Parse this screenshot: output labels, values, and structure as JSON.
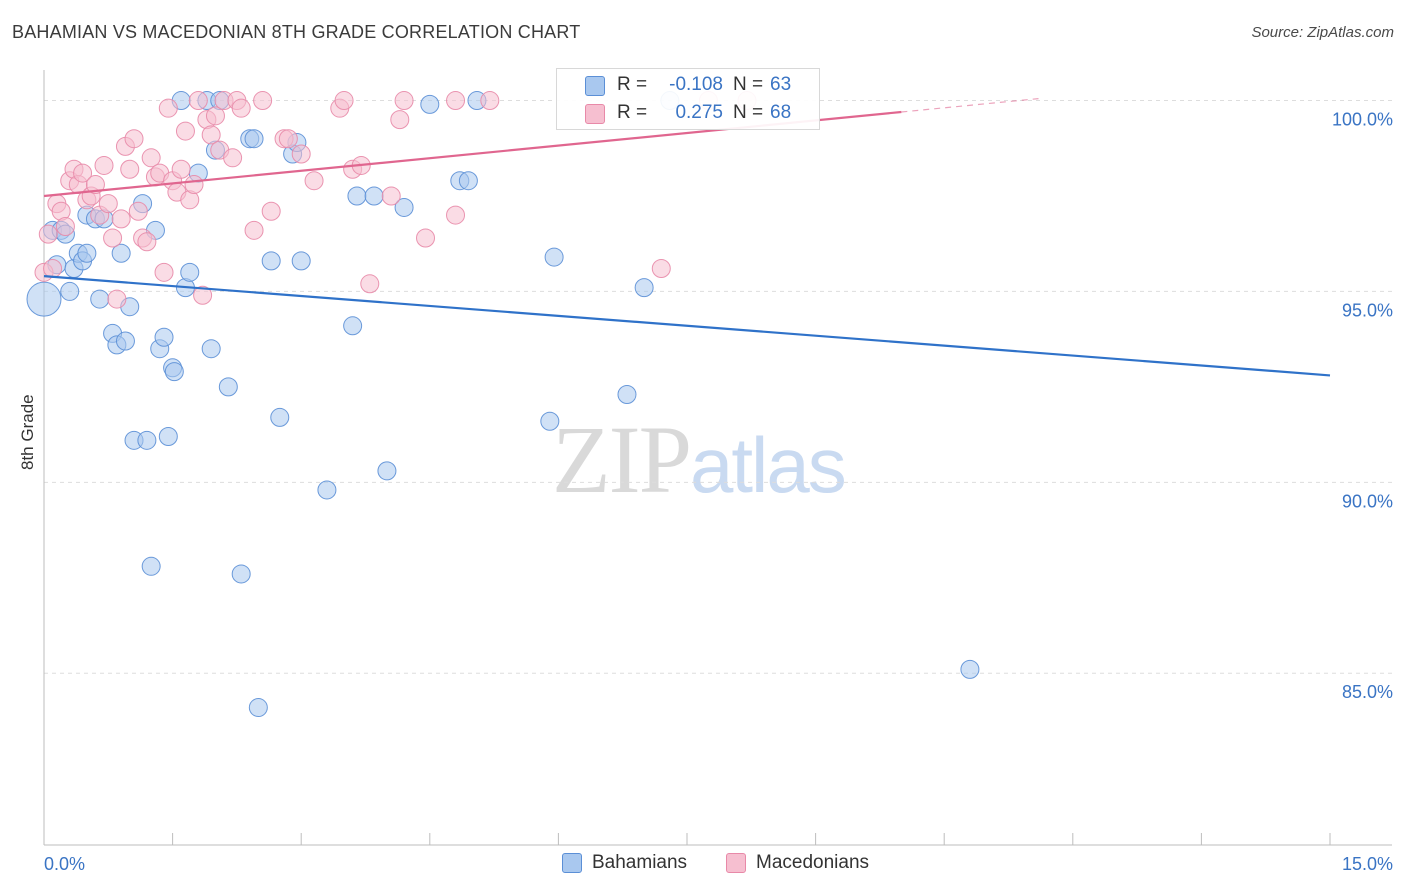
{
  "title": "BAHAMIAN VS MACEDONIAN 8TH GRADE CORRELATION CHART",
  "source": "Source: ZipAtlas.com",
  "watermark": {
    "zip": "ZIP",
    "atlas": "atlas"
  },
  "colors": {
    "blue_fill": "#a9c8ef",
    "blue_stroke": "#5b8fd6",
    "blue_line": "#2f72c9",
    "pink_fill": "#f6bfd0",
    "pink_stroke": "#e889a8",
    "pink_line": "#e0668f",
    "axis_text_blue": "#3a74c4",
    "grid": "#dddddd"
  },
  "stats": [
    {
      "r_label": "R =",
      "r_value": "-0.108",
      "n_label": "N =",
      "n_value": "63",
      "color": "#a9c8ef",
      "border": "#5b8fd6"
    },
    {
      "r_label": "R =",
      "r_value": "0.275",
      "n_label": "N =",
      "n_value": "68",
      "color": "#f6bfd0",
      "border": "#e889a8"
    }
  ],
  "legend": [
    {
      "label": "Bahamians",
      "color": "#a9c8ef",
      "border": "#5b8fd6"
    },
    {
      "label": "Macedonians",
      "color": "#f6bfd0",
      "border": "#e889a8"
    }
  ],
  "chart_data": {
    "type": "scatter",
    "title": "BAHAMIAN VS MACEDONIAN 8TH GRADE CORRELATION CHART",
    "xlabel": "",
    "ylabel": "8th Grade",
    "xlim": [
      0,
      15
    ],
    "ylim": [
      80.5,
      100.8
    ],
    "x_tick_labels": [
      "0.0%",
      "15.0%"
    ],
    "y_ticks": [
      85,
      90,
      95,
      100
    ],
    "y_tick_labels": [
      "85.0%",
      "90.0%",
      "95.0%",
      "100.0%"
    ],
    "grid": true,
    "series": [
      {
        "name": "Bahamians",
        "trend": {
          "x": [
            0,
            15
          ],
          "y": [
            95.4,
            92.8
          ]
        },
        "points": [
          [
            0.0,
            94.8
          ],
          [
            0.1,
            96.6
          ],
          [
            0.15,
            95.7
          ],
          [
            0.2,
            96.6
          ],
          [
            0.25,
            96.5
          ],
          [
            0.3,
            95.0
          ],
          [
            0.35,
            95.6
          ],
          [
            0.4,
            96.0
          ],
          [
            0.45,
            95.8
          ],
          [
            0.5,
            96.0
          ],
          [
            0.5,
            97.0
          ],
          [
            0.6,
            96.9
          ],
          [
            0.65,
            94.8
          ],
          [
            0.7,
            96.9
          ],
          [
            0.8,
            93.9
          ],
          [
            0.85,
            93.6
          ],
          [
            0.9,
            96.0
          ],
          [
            0.95,
            93.7
          ],
          [
            1.0,
            94.6
          ],
          [
            1.05,
            91.1
          ],
          [
            1.15,
            97.3
          ],
          [
            1.2,
            91.1
          ],
          [
            1.25,
            87.8
          ],
          [
            1.3,
            96.6
          ],
          [
            1.35,
            93.5
          ],
          [
            1.4,
            93.8
          ],
          [
            1.45,
            91.2
          ],
          [
            1.5,
            93.0
          ],
          [
            1.52,
            92.9
          ],
          [
            1.6,
            100.0
          ],
          [
            1.65,
            95.1
          ],
          [
            1.7,
            95.5
          ],
          [
            1.8,
            98.1
          ],
          [
            1.9,
            100.0
          ],
          [
            1.95,
            93.5
          ],
          [
            2.0,
            98.7
          ],
          [
            2.05,
            100.0
          ],
          [
            2.15,
            92.5
          ],
          [
            2.3,
            87.6
          ],
          [
            2.4,
            99.0
          ],
          [
            2.45,
            99.0
          ],
          [
            2.5,
            84.1
          ],
          [
            2.65,
            95.8
          ],
          [
            2.75,
            91.7
          ],
          [
            2.9,
            98.6
          ],
          [
            2.95,
            98.9
          ],
          [
            3.0,
            95.8
          ],
          [
            3.3,
            89.8
          ],
          [
            3.6,
            94.1
          ],
          [
            3.65,
            97.5
          ],
          [
            3.85,
            97.5
          ],
          [
            4.0,
            90.3
          ],
          [
            4.2,
            97.2
          ],
          [
            4.5,
            99.9
          ],
          [
            4.85,
            97.9
          ],
          [
            4.95,
            97.9
          ],
          [
            5.05,
            100.0
          ],
          [
            5.9,
            91.6
          ],
          [
            5.95,
            95.9
          ],
          [
            6.8,
            92.3
          ],
          [
            7.0,
            95.1
          ],
          [
            7.3,
            100.0
          ],
          [
            10.8,
            85.1
          ]
        ]
      },
      {
        "name": "Macedonians",
        "trend": {
          "x": [
            0,
            10
          ],
          "y": [
            97.5,
            99.7
          ]
        },
        "trend_dashed": {
          "x": [
            10,
            11.6
          ],
          "y": [
            99.7,
            100.05
          ]
        },
        "points": [
          [
            0.0,
            95.5
          ],
          [
            0.05,
            96.5
          ],
          [
            0.1,
            95.6
          ],
          [
            0.15,
            97.3
          ],
          [
            0.2,
            97.1
          ],
          [
            0.25,
            96.7
          ],
          [
            0.3,
            97.9
          ],
          [
            0.35,
            98.2
          ],
          [
            0.4,
            97.8
          ],
          [
            0.45,
            98.1
          ],
          [
            0.5,
            97.4
          ],
          [
            0.55,
            97.5
          ],
          [
            0.6,
            97.8
          ],
          [
            0.65,
            97.0
          ],
          [
            0.7,
            98.3
          ],
          [
            0.75,
            97.3
          ],
          [
            0.8,
            96.4
          ],
          [
            0.85,
            94.8
          ],
          [
            0.9,
            96.9
          ],
          [
            0.95,
            98.8
          ],
          [
            1.0,
            98.2
          ],
          [
            1.05,
            99.0
          ],
          [
            1.1,
            97.1
          ],
          [
            1.15,
            96.4
          ],
          [
            1.2,
            96.3
          ],
          [
            1.25,
            98.5
          ],
          [
            1.3,
            98.0
          ],
          [
            1.35,
            98.1
          ],
          [
            1.4,
            95.5
          ],
          [
            1.45,
            99.8
          ],
          [
            1.5,
            97.9
          ],
          [
            1.55,
            97.6
          ],
          [
            1.6,
            98.2
          ],
          [
            1.65,
            99.2
          ],
          [
            1.7,
            97.4
          ],
          [
            1.75,
            97.8
          ],
          [
            1.8,
            100.0
          ],
          [
            1.85,
            94.9
          ],
          [
            1.9,
            99.5
          ],
          [
            1.95,
            99.1
          ],
          [
            2.0,
            99.6
          ],
          [
            2.05,
            98.7
          ],
          [
            2.1,
            100.0
          ],
          [
            2.2,
            98.5
          ],
          [
            2.25,
            100.0
          ],
          [
            2.3,
            99.8
          ],
          [
            2.45,
            96.6
          ],
          [
            2.55,
            100.0
          ],
          [
            2.65,
            97.1
          ],
          [
            2.8,
            99.0
          ],
          [
            2.85,
            99.0
          ],
          [
            3.0,
            98.6
          ],
          [
            3.15,
            97.9
          ],
          [
            3.45,
            99.8
          ],
          [
            3.5,
            100.0
          ],
          [
            3.6,
            98.2
          ],
          [
            3.7,
            98.3
          ],
          [
            3.8,
            95.2
          ],
          [
            4.05,
            97.5
          ],
          [
            4.15,
            99.5
          ],
          [
            4.2,
            100.0
          ],
          [
            4.45,
            96.4
          ],
          [
            4.8,
            97.0
          ],
          [
            4.8,
            100.0
          ],
          [
            5.2,
            100.0
          ],
          [
            7.2,
            95.6
          ],
          [
            7.75,
            100.0
          ],
          [
            8.2,
            100.0
          ]
        ]
      }
    ]
  }
}
